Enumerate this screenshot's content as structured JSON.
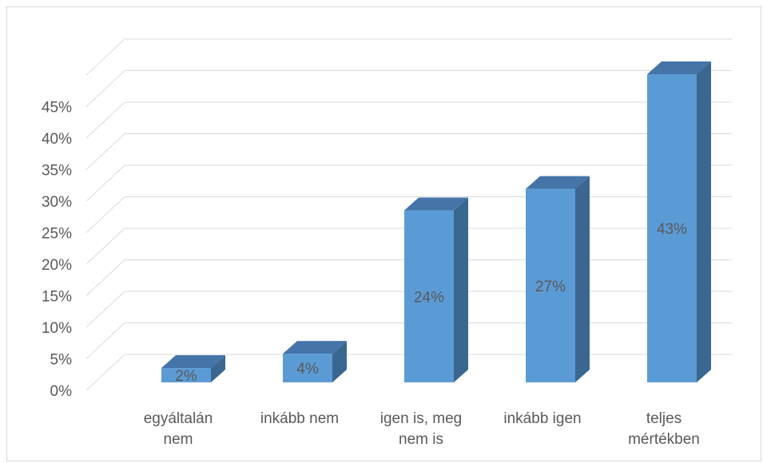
{
  "chart_data": {
    "type": "bar",
    "style": "3d-column",
    "categories": [
      "egyáltalán nem",
      "inkább nem",
      "igen is, meg nem is",
      "inkább igen",
      "teljes mértékben"
    ],
    "category_label_lines": [
      [
        "egyáltalán",
        "nem"
      ],
      [
        "inkább nem"
      ],
      [
        "igen is, meg",
        "nem is"
      ],
      [
        "inkább igen"
      ],
      [
        "teljes",
        "mértékben"
      ]
    ],
    "values": [
      2,
      4,
      24,
      27,
      43
    ],
    "data_labels": [
      "2%",
      "4%",
      "24%",
      "27%",
      "43%"
    ],
    "yticks": [
      "0%",
      "5%",
      "10%",
      "15%",
      "20%",
      "25%",
      "30%",
      "35%",
      "40%",
      "45%"
    ],
    "ylim": [
      0,
      50
    ],
    "grid": true,
    "legend": "none",
    "colors": {
      "bar_front": "#5b9bd5",
      "bar_side": "#3a6790",
      "bar_top": "#4474a8",
      "grid": "#d9d9d9",
      "text": "#595959"
    }
  }
}
